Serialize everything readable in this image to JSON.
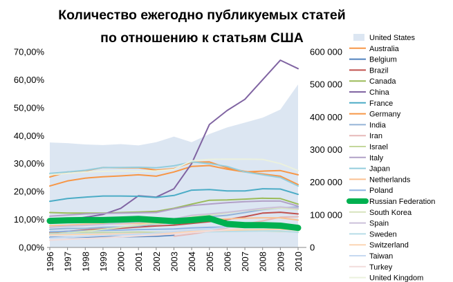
{
  "chart_data": {
    "type": "line",
    "title_line1": "Количество ежегодно публикуемых статей",
    "title_line2": "по отношению к статьям США",
    "x": [
      "1996",
      "1997",
      "1998",
      "1999",
      "2000",
      "2001",
      "2002",
      "2003",
      "2004",
      "2005",
      "2006",
      "2007",
      "2008",
      "2009",
      "2010"
    ],
    "y_left": {
      "min": 0,
      "max": 70,
      "ticks": [
        "0,00%",
        "10,00%",
        "20,00%",
        "30,00%",
        "40,00%",
        "50,00%",
        "60,00%",
        "70,00%"
      ]
    },
    "y_right": {
      "min": 0,
      "max": 600000,
      "ticks": [
        "0",
        "100 000",
        "200 000",
        "300 000",
        "400 000",
        "500 000",
        "600 000"
      ]
    },
    "area_series": {
      "name": "United States",
      "color": "#dce6f2",
      "axis": "right",
      "values": [
        322000,
        320000,
        316000,
        314000,
        317000,
        313000,
        323000,
        340000,
        323000,
        348000,
        368000,
        383000,
        398000,
        423000,
        500000
      ]
    },
    "series": [
      {
        "name": "Australia",
        "color": "#f79646",
        "values": [
          22,
          23.8,
          24.8,
          25.3,
          25.6,
          26,
          25.5,
          27,
          29,
          29.3,
          28,
          27,
          27.3,
          27.5,
          26
        ]
      },
      {
        "name": "Belgium",
        "color": "#4f81bd",
        "values": [
          3.6,
          3.6,
          3.7,
          3.8,
          3.8,
          3.9,
          4,
          4.4,
          null,
          null,
          null,
          null,
          null,
          null,
          null
        ]
      },
      {
        "name": "Brazil",
        "color": "#c0504d",
        "values": [
          5.4,
          5.8,
          6.2,
          6.6,
          6.9,
          7.3,
          7.7,
          8,
          8.6,
          9.2,
          10,
          11,
          12.3,
          12.6,
          12
        ]
      },
      {
        "name": "Canada",
        "color": "#9bbb59",
        "values": [
          12.5,
          12.3,
          12.3,
          12.3,
          12.5,
          12.7,
          12.9,
          14,
          15.5,
          16.9,
          17,
          17.3,
          17.6,
          17.5,
          15.5
        ]
      },
      {
        "name": "China",
        "color": "#8064a2",
        "values": [
          8.8,
          9.8,
          10.8,
          11.8,
          14,
          18.5,
          18,
          21,
          30,
          44,
          49,
          53,
          60,
          67,
          64
        ]
      },
      {
        "name": "France",
        "color": "#4bacc6",
        "values": [
          16.5,
          17.5,
          18,
          18.4,
          18.4,
          18.3,
          17.9,
          18.6,
          20.5,
          20.7,
          20.2,
          20.2,
          21,
          20.9,
          19
        ]
      },
      {
        "name": "Germany",
        "color": "#f79646",
        "values": [
          25.2,
          27,
          27.4,
          28.6,
          28.5,
          28.5,
          27.7,
          28.2,
          30.5,
          30.6,
          28.5,
          27.2,
          26.3,
          25.5,
          22.5
        ]
      },
      {
        "name": "India",
        "color": "#95b3d7",
        "values": [
          6.5,
          6.8,
          6.8,
          7.2,
          7.3,
          7.6,
          8.4,
          9.1,
          10.2,
          11,
          11.5,
          12.5,
          13.5,
          14.2,
          14.5
        ]
      },
      {
        "name": "Iran",
        "color": "#e6b9b8",
        "values": [
          null,
          null,
          null,
          null,
          null,
          null,
          null,
          4,
          4.8,
          5.8,
          7,
          8.4,
          9.5,
          10.8,
          11
        ]
      },
      {
        "name": "Israel",
        "color": "#c4d79b",
        "values": [
          5,
          5.2,
          5.3,
          5.4,
          5.4,
          5.5,
          5.4,
          5.6,
          5.7,
          5.8,
          5.8,
          5.9,
          5.9,
          5.8,
          5.5
        ]
      },
      {
        "name": "Italy",
        "color": "#b1a0c7",
        "values": [
          11.2,
          11.6,
          12,
          12.2,
          12.3,
          12.4,
          12.5,
          13.8,
          15,
          15.5,
          16,
          16.4,
          16.6,
          16.6,
          14.8
        ]
      },
      {
        "name": "Japan",
        "color": "#93cddd",
        "values": [
          26.5,
          27,
          27.6,
          28.6,
          28.6,
          28.7,
          28.5,
          29.2,
          30.6,
          30,
          29,
          27,
          26,
          25,
          22
        ]
      },
      {
        "name": "Netherlands",
        "color": "#fac090",
        "values": [
          7.8,
          8,
          8.3,
          8.4,
          8.5,
          8.6,
          8.5,
          9,
          9.8,
          10,
          10.2,
          10.5,
          10.6,
          10.6,
          9.8
        ]
      },
      {
        "name": "Poland",
        "color": "#8eb4e3",
        "values": [
          5.6,
          5.8,
          6,
          6.1,
          6.2,
          6.4,
          6.5,
          6.6,
          7,
          7.2,
          7.3,
          7.5,
          7.6,
          7.5,
          7
        ]
      },
      {
        "name": "Russian Federation",
        "color": "#00b050",
        "thick": true,
        "values": [
          9.5,
          9.7,
          9.8,
          9.8,
          10,
          10.2,
          9.8,
          9.4,
          9.8,
          10.4,
          8.4,
          8,
          8,
          7.8,
          7
        ]
      },
      {
        "name": "South Korea",
        "color": "#d7e4bd",
        "values": [
          4.5,
          5.2,
          5.8,
          6.5,
          7.2,
          8,
          8.6,
          9.4,
          11,
          11.6,
          12.4,
          13.2,
          13.7,
          14.2,
          13.6
        ]
      },
      {
        "name": "Spain",
        "color": "#ccc0da",
        "values": [
          7.2,
          7.6,
          7.9,
          8.2,
          8.7,
          9,
          9.4,
          10.2,
          11.5,
          12,
          12.6,
          13.3,
          14,
          14.5,
          14
        ]
      },
      {
        "name": "Sweden",
        "color": "#b7dde8",
        "values": [
          4.8,
          4.9,
          5,
          5,
          5.1,
          5.1,
          5,
          5.1,
          5.4,
          5.6,
          5.7,
          5.8,
          5.9,
          5.9,
          5.4
        ]
      },
      {
        "name": "Switzerland",
        "color": "#fcd5b4",
        "values": [
          4.5,
          4.6,
          4.7,
          4.8,
          4.9,
          5,
          5,
          5.2,
          5.7,
          5.9,
          6.1,
          6.3,
          6.4,
          6.5,
          6.2
        ]
      },
      {
        "name": "Taiwan",
        "color": "#c6d9f1",
        "values": [
          3.4,
          3.6,
          3.9,
          4.2,
          4.5,
          4.8,
          5.2,
          5.7,
          6.2,
          6.6,
          7.2,
          7.8,
          8.2,
          8.5,
          8
        ]
      },
      {
        "name": "Turkey",
        "color": "#f2dcdb",
        "values": [
          2.6,
          2.9,
          3.2,
          3.5,
          3.8,
          4.1,
          4.4,
          4.8,
          5.3,
          5.8,
          6.4,
          7.1,
          7.6,
          7.9,
          7.6
        ]
      },
      {
        "name": "United Kingdom",
        "color": "#ebf1de",
        "values": [
          26,
          26.5,
          27,
          27.2,
          27.4,
          27.2,
          27.4,
          28,
          31,
          31.5,
          31.6,
          31.6,
          31.5,
          30,
          27.5
        ]
      }
    ]
  }
}
